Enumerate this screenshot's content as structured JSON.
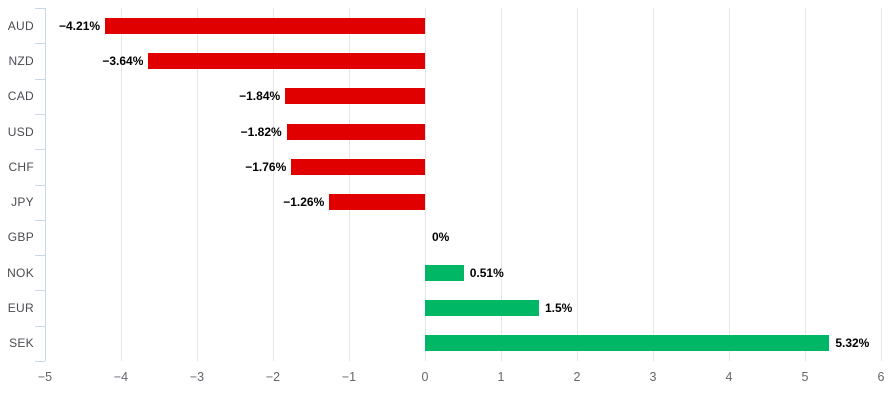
{
  "chart_data": {
    "type": "bar",
    "orientation": "horizontal",
    "categories": [
      "AUD",
      "NZD",
      "CAD",
      "USD",
      "CHF",
      "JPY",
      "GBP",
      "NOK",
      "EUR",
      "SEK"
    ],
    "values": [
      -4.21,
      -3.64,
      -1.84,
      -1.82,
      -1.76,
      -1.26,
      0,
      0.51,
      1.5,
      5.32
    ],
    "value_labels": [
      "−4.21%",
      "−3.64%",
      "−1.84%",
      "−1.82%",
      "−1.76%",
      "−1.26%",
      "0%",
      "0.51%",
      "1.5%",
      "5.32%"
    ],
    "x_ticks": [
      -5,
      -4,
      -3,
      -2,
      -1,
      0,
      1,
      2,
      3,
      4,
      5,
      6
    ],
    "x_tick_labels": [
      "−5",
      "−4",
      "−3",
      "−2",
      "−1",
      "0",
      "1",
      "2",
      "3",
      "4",
      "5",
      "6"
    ],
    "xlim": [
      -5,
      6
    ],
    "grid": true,
    "legend": false,
    "xlabel": "",
    "ylabel": "",
    "colors": {
      "negative_bar": "#e00000",
      "positive_bar": "#00b765",
      "gridline": "#e6e6e6",
      "axis_line": "#ccd6eb",
      "category_label": "#4a4a52",
      "tick_label": "#65656e",
      "value_label": "#000000",
      "background": "#ffffff"
    }
  }
}
